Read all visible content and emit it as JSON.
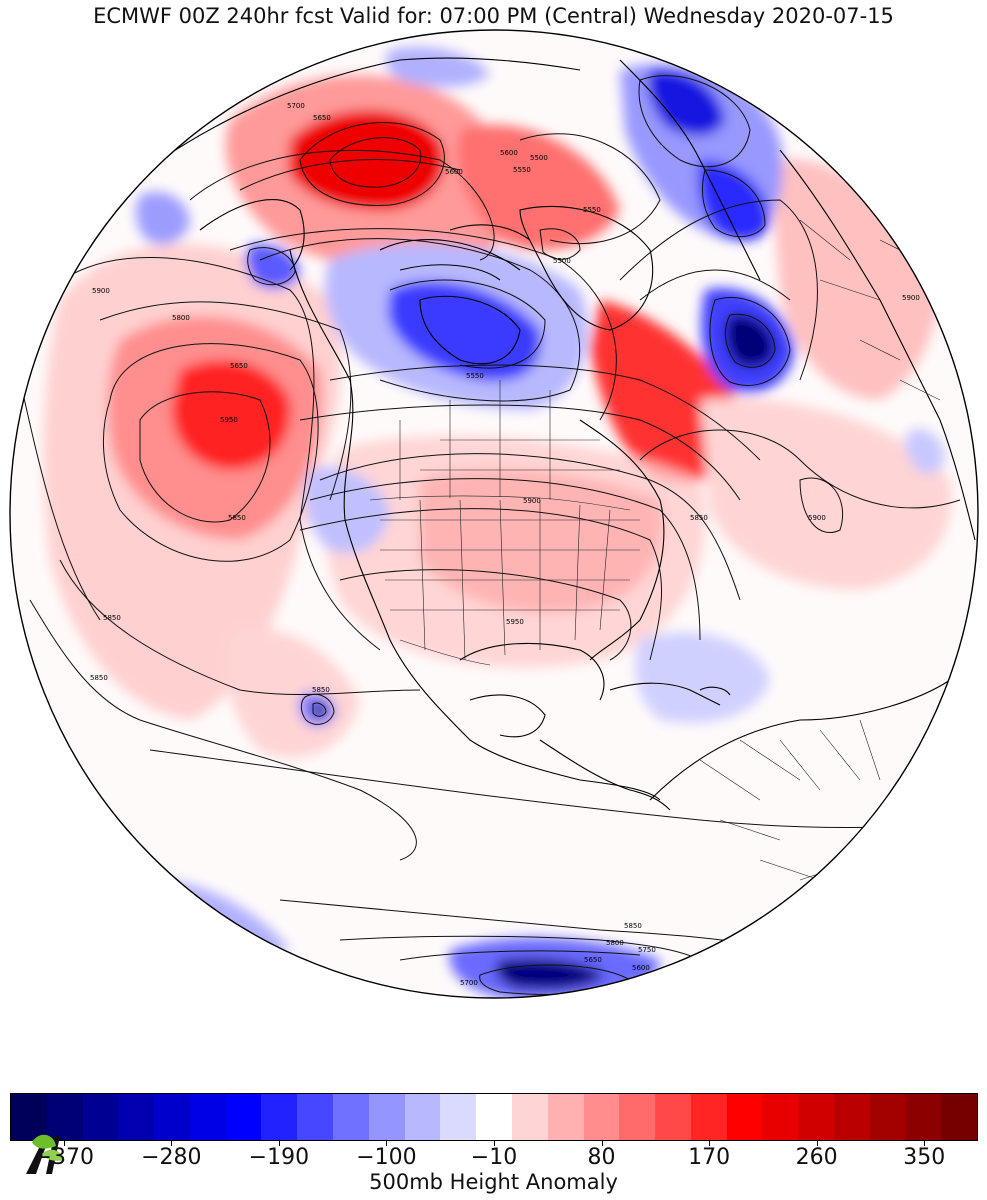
{
  "title": "ECMWF 00Z 240hr fcst Valid for: 07:00 PM (Central) Wednesday 2020-07-15",
  "colorbar": {
    "label": "500mb Height Anomaly",
    "colors": [
      "#00005a",
      "#000075",
      "#000093",
      "#0000b0",
      "#0000cc",
      "#0000e6",
      "#0000ff",
      "#2222ff",
      "#4747ff",
      "#7171ff",
      "#9595ff",
      "#b8b8ff",
      "#dadaff",
      "#ffffff",
      "#ffd4d4",
      "#ffb0b0",
      "#ff8d8d",
      "#ff6b6b",
      "#ff4848",
      "#ff2525",
      "#ff0000",
      "#e80000",
      "#d10000",
      "#ba0000",
      "#a30000",
      "#8c0000",
      "#760000"
    ],
    "ticks": [
      {
        "value": -370,
        "label": "−370"
      },
      {
        "value": -280,
        "label": "−280"
      },
      {
        "value": -190,
        "label": "−190"
      },
      {
        "value": -100,
        "label": "−100"
      },
      {
        "value": -10,
        "label": "−10"
      },
      {
        "value": 80,
        "label": "80"
      },
      {
        "value": 170,
        "label": "170"
      },
      {
        "value": 260,
        "label": "260"
      },
      {
        "value": 350,
        "label": "350"
      }
    ]
  },
  "contour_labels": [
    "5700",
    "5650",
    "5550",
    "5600",
    "5500",
    "5550",
    "5550",
    "5500",
    "5600",
    "5650",
    "5800",
    "5850",
    "5900",
    "5850",
    "5950",
    "5900",
    "5900",
    "5850",
    "5950",
    "5850",
    "5850",
    "5900",
    "5850",
    "5800",
    "5750",
    "5700",
    "5650",
    "5600"
  ],
  "icons": {
    "logo": "leaf-logo"
  }
}
